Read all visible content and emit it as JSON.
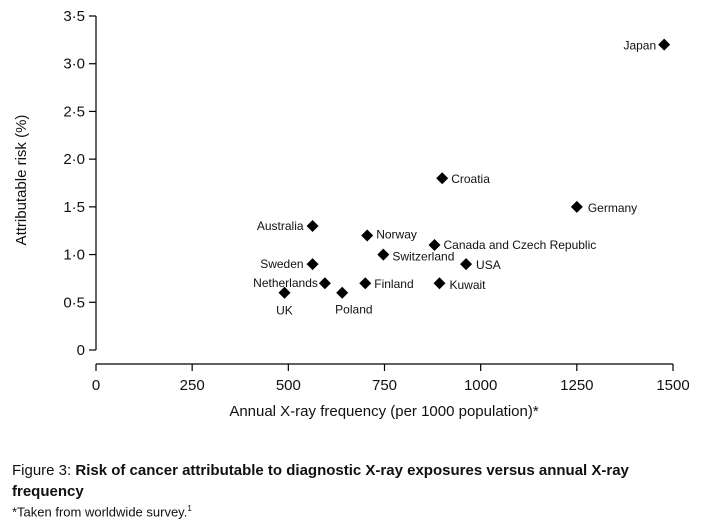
{
  "chart_data": {
    "type": "scatter",
    "title": "",
    "xlabel": "Annual X-ray frequency (per 1000 population)*",
    "ylabel": "Attributable risk (%)",
    "xlim": [
      0,
      1500
    ],
    "ylim": [
      0,
      3.5
    ],
    "x_ticks": [
      "0",
      "250",
      "500",
      "750",
      "1000",
      "1250",
      "1500"
    ],
    "y_ticks": [
      "0",
      "0·5",
      "1·0",
      "1·5",
      "2·0",
      "2·5",
      "3·0",
      "3·5"
    ],
    "grid": false,
    "marker": "diamond",
    "marker_color": "#000000",
    "points": [
      {
        "label": "Japan",
        "x": 1477,
        "y": 3.2
      },
      {
        "label": "Croatia",
        "x": 900,
        "y": 1.8
      },
      {
        "label": "Germany",
        "x": 1250,
        "y": 1.5
      },
      {
        "label": "Australia",
        "x": 563,
        "y": 1.3
      },
      {
        "label": "Norway",
        "x": 705,
        "y": 1.2
      },
      {
        "label": "Canada and Czech Republic",
        "x": 880,
        "y": 1.1
      },
      {
        "label": "Switzerland",
        "x": 747,
        "y": 1.0
      },
      {
        "label": "USA",
        "x": 962,
        "y": 0.9
      },
      {
        "label": "Sweden",
        "x": 563,
        "y": 0.9
      },
      {
        "label": "Netherlands",
        "x": 595,
        "y": 0.7
      },
      {
        "label": "Finland",
        "x": 700,
        "y": 0.7
      },
      {
        "label": "Kuwait",
        "x": 893,
        "y": 0.7
      },
      {
        "label": "UK",
        "x": 490,
        "y": 0.6
      },
      {
        "label": "Poland",
        "x": 640,
        "y": 0.6
      }
    ]
  },
  "caption": {
    "prefix": "Figure 3: ",
    "title": "Risk of cancer attributable to diagnostic X-ray exposures versus annual X-ray frequency"
  },
  "footnote": {
    "text": "*Taken from worldwide survey.",
    "ref": "1"
  }
}
